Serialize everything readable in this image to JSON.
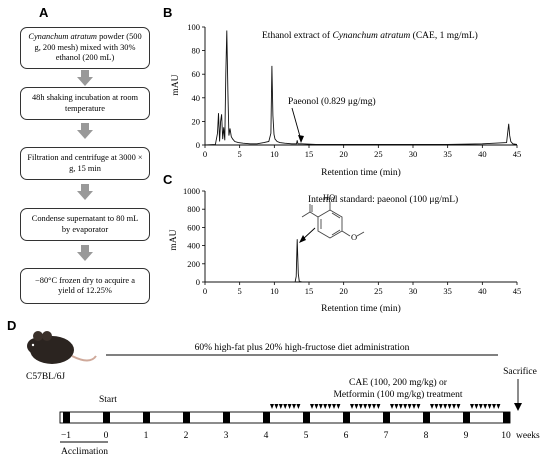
{
  "panels": {
    "A": "A",
    "B": "B",
    "C": "C",
    "D": "D"
  },
  "flowchart": {
    "steps": [
      {
        "italic": "Cynanchum atratum",
        "rest": " powder (500 g, 200 mesh) mixed with 30% ethanol (200 mL)"
      },
      {
        "italic": "",
        "rest": "48h shaking incubation at room temperature"
      },
      {
        "italic": "",
        "rest": "Filtration and centrifuge at 3000 × g, 15 min"
      },
      {
        "italic": "",
        "rest": "Condense supernatant to 80 mL by evaporator"
      },
      {
        "italic": "",
        "rest": "−80°C frozen dry to acquire a yield of 12.25%"
      }
    ]
  },
  "chart_data": [
    {
      "type": "line",
      "panel": "B",
      "title_pre": "Ethanol extract of ",
      "title_italic": "Cynanchum atratum",
      "title_post": " (CAE, 1 mg/mL)",
      "xlabel": "Retention time (min)",
      "ylabel": "mAU",
      "xlim": [
        0,
        45
      ],
      "ylim": [
        0,
        100
      ],
      "xticks": [
        "0",
        "5",
        "10",
        "15",
        "20",
        "25",
        "30",
        "35",
        "40",
        "45"
      ],
      "yticks": [
        "0",
        "20",
        "40",
        "60",
        "80",
        "100"
      ],
      "annotation": "Paeonol (0.829 μg/mg)",
      "annotation_x": 13.3,
      "series": [
        {
          "x": [
            0,
            1.5,
            1.8,
            1.95,
            2.1,
            2.25,
            2.4,
            2.55,
            2.7,
            2.85,
            3.0,
            3.15,
            3.3,
            3.45,
            3.6,
            3.8,
            4.0,
            4.3,
            4.8,
            5.5,
            6.5,
            7.5,
            8.5,
            9.2,
            9.5,
            9.65,
            9.8,
            9.95,
            10.1,
            10.4,
            10.8,
            11.5,
            12.5,
            13.2,
            13.3,
            13.4,
            14,
            16,
            20,
            25,
            30,
            35,
            40,
            43.5,
            43.8,
            43.95,
            44.1,
            44.4,
            45
          ],
          "y": [
            0,
            0.5,
            10,
            27,
            3,
            20,
            26,
            5,
            15,
            4,
            60,
            97,
            45,
            8,
            14,
            7,
            5,
            3,
            2,
            1.5,
            1,
            1,
            2,
            3,
            10,
            67,
            25,
            9,
            5,
            3,
            2,
            1.5,
            1,
            1,
            4,
            1,
            1,
            0.5,
            0.5,
            0.5,
            0.5,
            0.5,
            1,
            2,
            18,
            8,
            3,
            1,
            0.5
          ]
        }
      ]
    },
    {
      "type": "line",
      "panel": "C",
      "title": "Internal standard: paeonol (100 μg/mL)",
      "xlabel": "Retention time (min)",
      "ylabel": "mAU",
      "xlim": [
        0,
        45
      ],
      "ylim": [
        0,
        1000
      ],
      "xticks": [
        "0",
        "5",
        "10",
        "15",
        "20",
        "25",
        "30",
        "35",
        "40",
        "45"
      ],
      "yticks": [
        "0",
        "200",
        "400",
        "600",
        "800",
        "1000"
      ],
      "structure_labels": {
        "ho": "HO",
        "o": "O"
      },
      "series": [
        {
          "x": [
            0,
            13.0,
            13.15,
            13.3,
            13.45,
            13.6,
            14,
            45
          ],
          "y": [
            0,
            0,
            60,
            470,
            90,
            5,
            0,
            0
          ]
        }
      ]
    }
  ],
  "timeline": {
    "mouse_label": "C57BL/6J",
    "diet_label": "60% high-fat plus 20% high-fructose diet administration",
    "start_label": "Start",
    "treatment_line1": "CAE (100, 200 mg/kg) or",
    "treatment_line2": "Metformin (100 mg/kg) treatment",
    "sacrifice_label": "Sacrifice",
    "acclimation_label": "Acclimation",
    "weeks_label": "weeks",
    "week_ticks": [
      "−1",
      "0",
      "1",
      "2",
      "3",
      "4",
      "5",
      "6",
      "7",
      "8",
      "9",
      "10"
    ]
  }
}
